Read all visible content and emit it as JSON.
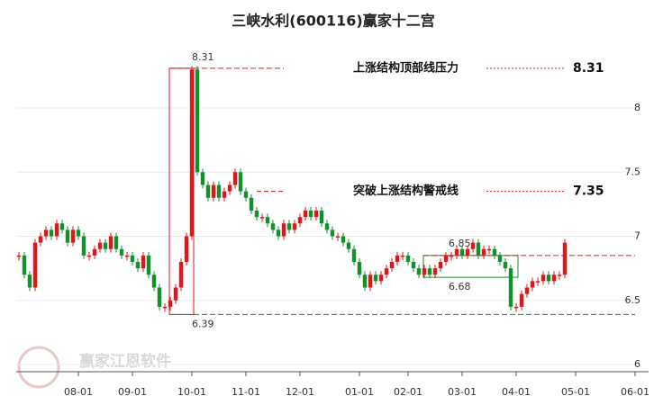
{
  "chart_data": {
    "type": "candlestick",
    "title": "三峡水利(600116)赢家十二宫",
    "watermark": "赢家江恩软件",
    "categories": [
      null,
      null,
      null,
      null,
      null,
      null,
      null,
      null,
      null,
      null,
      null,
      "08-01",
      null,
      null,
      null,
      null,
      null,
      null,
      null,
      null,
      null,
      "09-01",
      null,
      null,
      null,
      null,
      null,
      null,
      null,
      null,
      null,
      null,
      "10-01",
      null,
      null,
      null,
      null,
      null,
      null,
      null,
      null,
      null,
      "11-01",
      null,
      null,
      null,
      null,
      null,
      null,
      null,
      null,
      null,
      "12-01",
      null,
      null,
      null,
      null,
      null,
      null,
      null,
      null,
      null,
      null,
      "01-01",
      null,
      null,
      null,
      null,
      null,
      null,
      null,
      null,
      "02-01",
      null,
      null,
      null,
      null,
      null,
      null,
      null,
      null,
      null,
      "03-01",
      null,
      null,
      null,
      null,
      null,
      null,
      null,
      null,
      null,
      "04-01",
      null,
      null,
      null,
      null,
      null,
      null,
      null,
      null,
      null,
      null,
      "05-01",
      null,
      null,
      null,
      null,
      null,
      null,
      null,
      null,
      null,
      null,
      "06-01"
    ],
    "values": [
      6.85,
      6.7,
      6.6,
      6.95,
      7.0,
      7.05,
      7.0,
      7.1,
      7.05,
      6.95,
      7.05,
      7.0,
      6.85,
      6.85,
      6.9,
      6.95,
      6.9,
      7.0,
      6.9,
      6.85,
      6.85,
      6.8,
      6.75,
      6.85,
      6.7,
      6.6,
      6.45,
      6.45,
      6.5,
      6.6,
      6.8,
      7.0,
      8.3,
      7.5,
      7.4,
      7.3,
      7.4,
      7.3,
      7.35,
      7.4,
      7.5,
      7.35,
      7.3,
      7.2,
      7.15,
      7.15,
      7.1,
      7.05,
      7.0,
      7.1,
      7.05,
      7.1,
      7.15,
      7.2,
      7.15,
      7.2,
      7.1,
      7.05,
      7.0,
      7.0,
      6.95,
      6.9,
      6.8,
      6.7,
      6.6,
      6.7,
      6.65,
      6.7,
      6.75,
      6.8,
      6.85,
      6.85,
      6.8,
      6.75,
      6.7,
      6.75,
      6.7,
      6.75,
      6.8,
      6.85,
      6.85,
      6.9,
      6.85,
      6.9,
      6.95,
      6.85,
      6.9,
      6.9,
      6.85,
      6.8,
      6.75,
      6.45,
      6.45,
      6.55,
      6.6,
      6.65,
      6.65,
      6.7,
      6.65,
      6.7,
      6.7,
      6.95,
      null,
      null,
      null,
      null,
      null,
      null,
      null,
      null,
      null,
      null,
      null,
      null,
      null
    ],
    "up_color": "#e0161c",
    "down_color": "#11902c",
    "ylim": [
      6,
      8.5
    ],
    "yticks": [
      6,
      6.5,
      7,
      7.5,
      8
    ],
    "grid": true,
    "levels": {
      "top": 8.31,
      "bottom": 6.39,
      "box_high": 6.85,
      "box_low": 6.68
    },
    "annotations": [
      {
        "text": "上涨结构顶部线压力",
        "value": 8.31
      },
      {
        "text": "突破上涨结构警戒线",
        "value": 7.35
      }
    ]
  }
}
